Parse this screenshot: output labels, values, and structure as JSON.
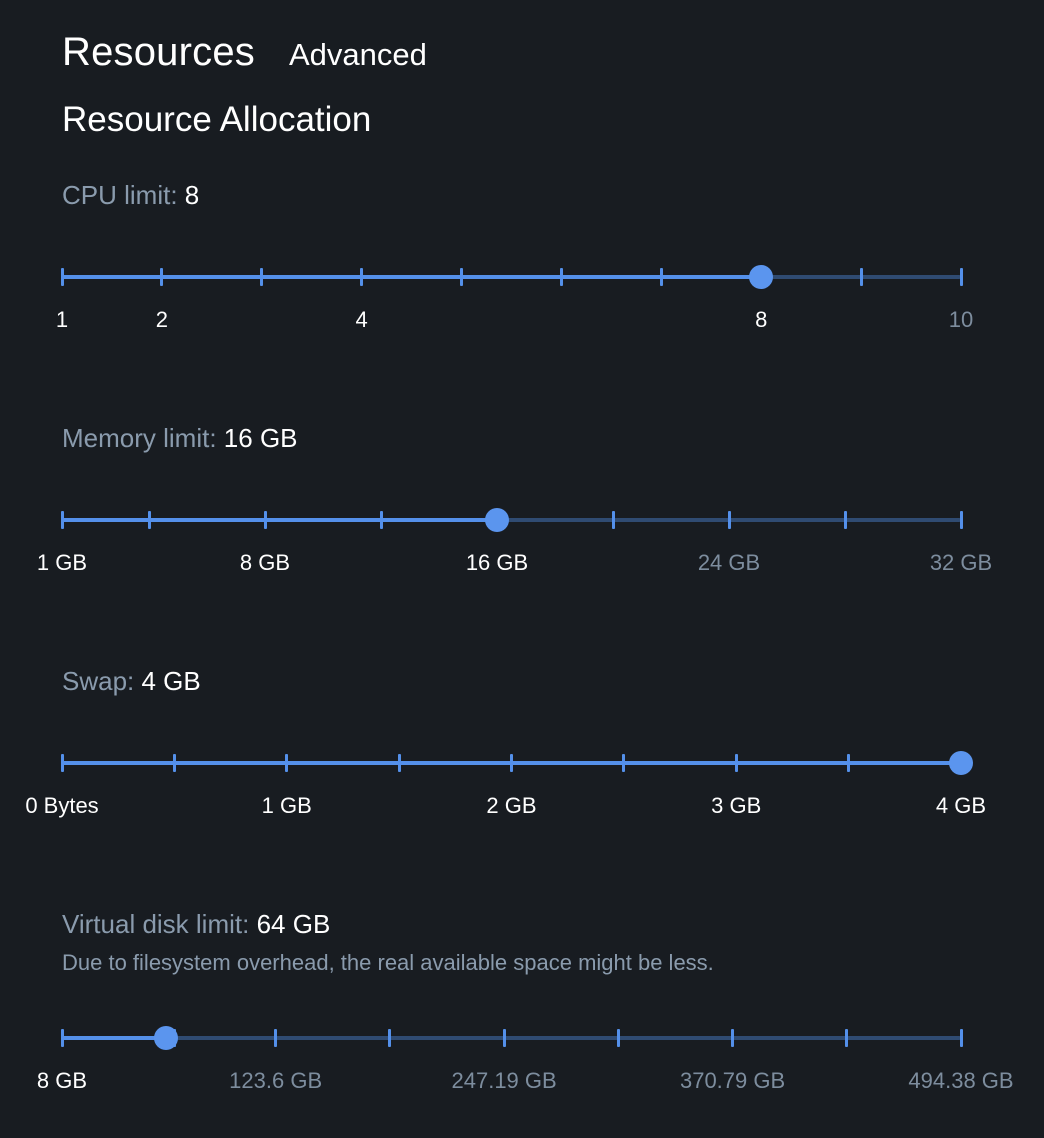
{
  "tabs": {
    "resources": "Resources",
    "advanced": "Advanced"
  },
  "section_title": "Resource Allocation",
  "cpu": {
    "label": "CPU limit:",
    "value": "8",
    "level": 8,
    "min": 1,
    "max": 10,
    "ticks": [
      1,
      2,
      3,
      4,
      5,
      6,
      7,
      8,
      9,
      10
    ],
    "marks": [
      {
        "label": "1",
        "value": 1
      },
      {
        "label": "2",
        "value": 2
      },
      {
        "label": "4",
        "value": 4
      },
      {
        "label": "8",
        "value": 8
      },
      {
        "label": "10",
        "value": 10
      }
    ]
  },
  "memory": {
    "label": "Memory limit:",
    "value": "16 GB",
    "level": 16,
    "min": 1,
    "max": 32,
    "ticks": [
      1,
      4,
      8,
      12,
      16,
      20,
      24,
      28,
      32
    ],
    "marks": [
      {
        "label": "1 GB",
        "value": 1
      },
      {
        "label": "8 GB",
        "value": 8
      },
      {
        "label": "16 GB",
        "value": 16
      },
      {
        "label": "24 GB",
        "value": 24
      },
      {
        "label": "32 GB",
        "value": 32
      }
    ]
  },
  "swap": {
    "label": "Swap:",
    "value": "4 GB",
    "level": 4,
    "min": 0,
    "max": 4,
    "ticks": [
      0,
      0.5,
      1,
      1.5,
      2,
      2.5,
      3,
      3.5,
      4
    ],
    "marks": [
      {
        "label": "0 Bytes",
        "value": 0
      },
      {
        "label": "1 GB",
        "value": 1
      },
      {
        "label": "2 GB",
        "value": 2
      },
      {
        "label": "3 GB",
        "value": 3
      },
      {
        "label": "4 GB",
        "value": 4
      }
    ]
  },
  "disk": {
    "label": "Virtual disk limit:",
    "value": "64 GB",
    "note": "Due to filesystem overhead, the real available space might be less.",
    "level": 64,
    "min": 8,
    "max": 494.38,
    "ticks": [
      8,
      68.8,
      123.6,
      185.4,
      247.19,
      308.99,
      370.79,
      432.59,
      494.38
    ],
    "marks": [
      {
        "label": "8 GB",
        "value": 8
      },
      {
        "label": "123.6 GB",
        "value": 123.6
      },
      {
        "label": "247.19 GB",
        "value": 247.19
      },
      {
        "label": "370.79 GB",
        "value": 370.79
      },
      {
        "label": "494.38 GB",
        "value": 494.38
      }
    ]
  },
  "colors": {
    "background": "#181c21",
    "accent": "#5490ea",
    "rail_inactive": "#2f4b72",
    "muted_text": "#8a9bad"
  }
}
